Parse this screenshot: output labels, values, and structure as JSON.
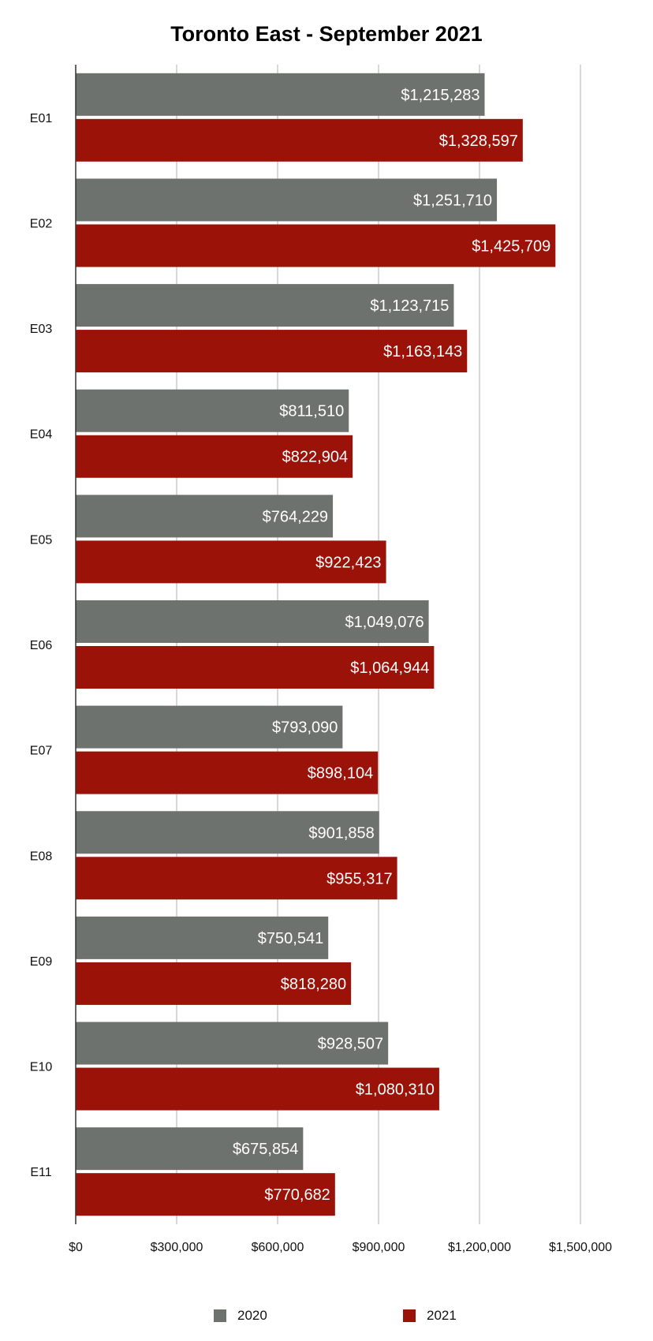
{
  "chart_data": {
    "type": "bar",
    "orientation": "horizontal",
    "title": "Toronto East - September 2021",
    "categories": [
      "E01",
      "E02",
      "E03",
      "E04",
      "E05",
      "E06",
      "E07",
      "E08",
      "E09",
      "E10",
      "E11"
    ],
    "series": [
      {
        "name": "2020",
        "color": "#6e726f",
        "values": [
          1215283,
          1251710,
          1123715,
          811510,
          764229,
          1049076,
          793090,
          901858,
          750541,
          928507,
          675854
        ],
        "labels": [
          "$1,215,283",
          "$1,251,710",
          "$1,123,715",
          "$811,510",
          "$764,229",
          "$1,049,076",
          "$793,090",
          "$901,858",
          "$750,541",
          "$928,507",
          "$675,854"
        ]
      },
      {
        "name": "2021",
        "color": "#9b1208",
        "values": [
          1328597,
          1425709,
          1163143,
          822904,
          922423,
          1064944,
          898104,
          955317,
          818280,
          1080310,
          770682
        ],
        "labels": [
          "$1,328,597",
          "$1,425,709",
          "$1,163,143",
          "$822,904",
          "$922,423",
          "$1,064,944",
          "$898,104",
          "$955,317",
          "$818,280",
          "$1,080,310",
          "$770,682"
        ]
      }
    ],
    "xlim": [
      0,
      1500000
    ],
    "x_ticks": [
      0,
      300000,
      600000,
      900000,
      1200000,
      1500000
    ],
    "x_tick_labels": [
      "$0",
      "$300,000",
      "$600,000",
      "$900,000",
      "$1,200,000",
      "$1,500,000"
    ],
    "grid": true,
    "grid_color": "#cccccc",
    "legend": "bottom"
  }
}
